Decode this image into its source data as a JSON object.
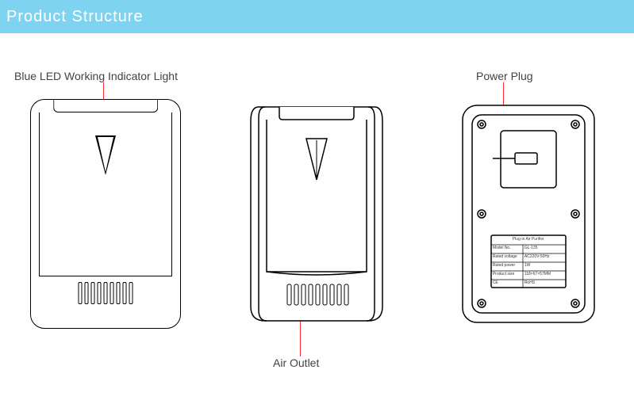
{
  "header": {
    "title": "Product  Structure",
    "bg_color": "#7ed3f0",
    "text_color": "#ffffff"
  },
  "callouts": {
    "led": "Blue LED Working Indicator Light",
    "plug": "Power Plug",
    "outlet": "Air Outlet"
  },
  "callout_line_color": "#ff2a2a",
  "stroke_color": "#000000",
  "spec_label": {
    "title": "Plug-in Air Purifier",
    "rows": [
      [
        "Model No.",
        "GL-135"
      ],
      [
        "Rated voltage",
        "AC220V-50Hz"
      ],
      [
        "Rated power",
        "1W"
      ],
      [
        "Product size",
        "118×67×57MM"
      ],
      [
        "CE",
        "RoHS"
      ]
    ],
    "label_fontsize": 5,
    "text_color": "#333333"
  },
  "layout": {
    "vent_count": 9,
    "device_width": 190,
    "device_height": 290
  }
}
